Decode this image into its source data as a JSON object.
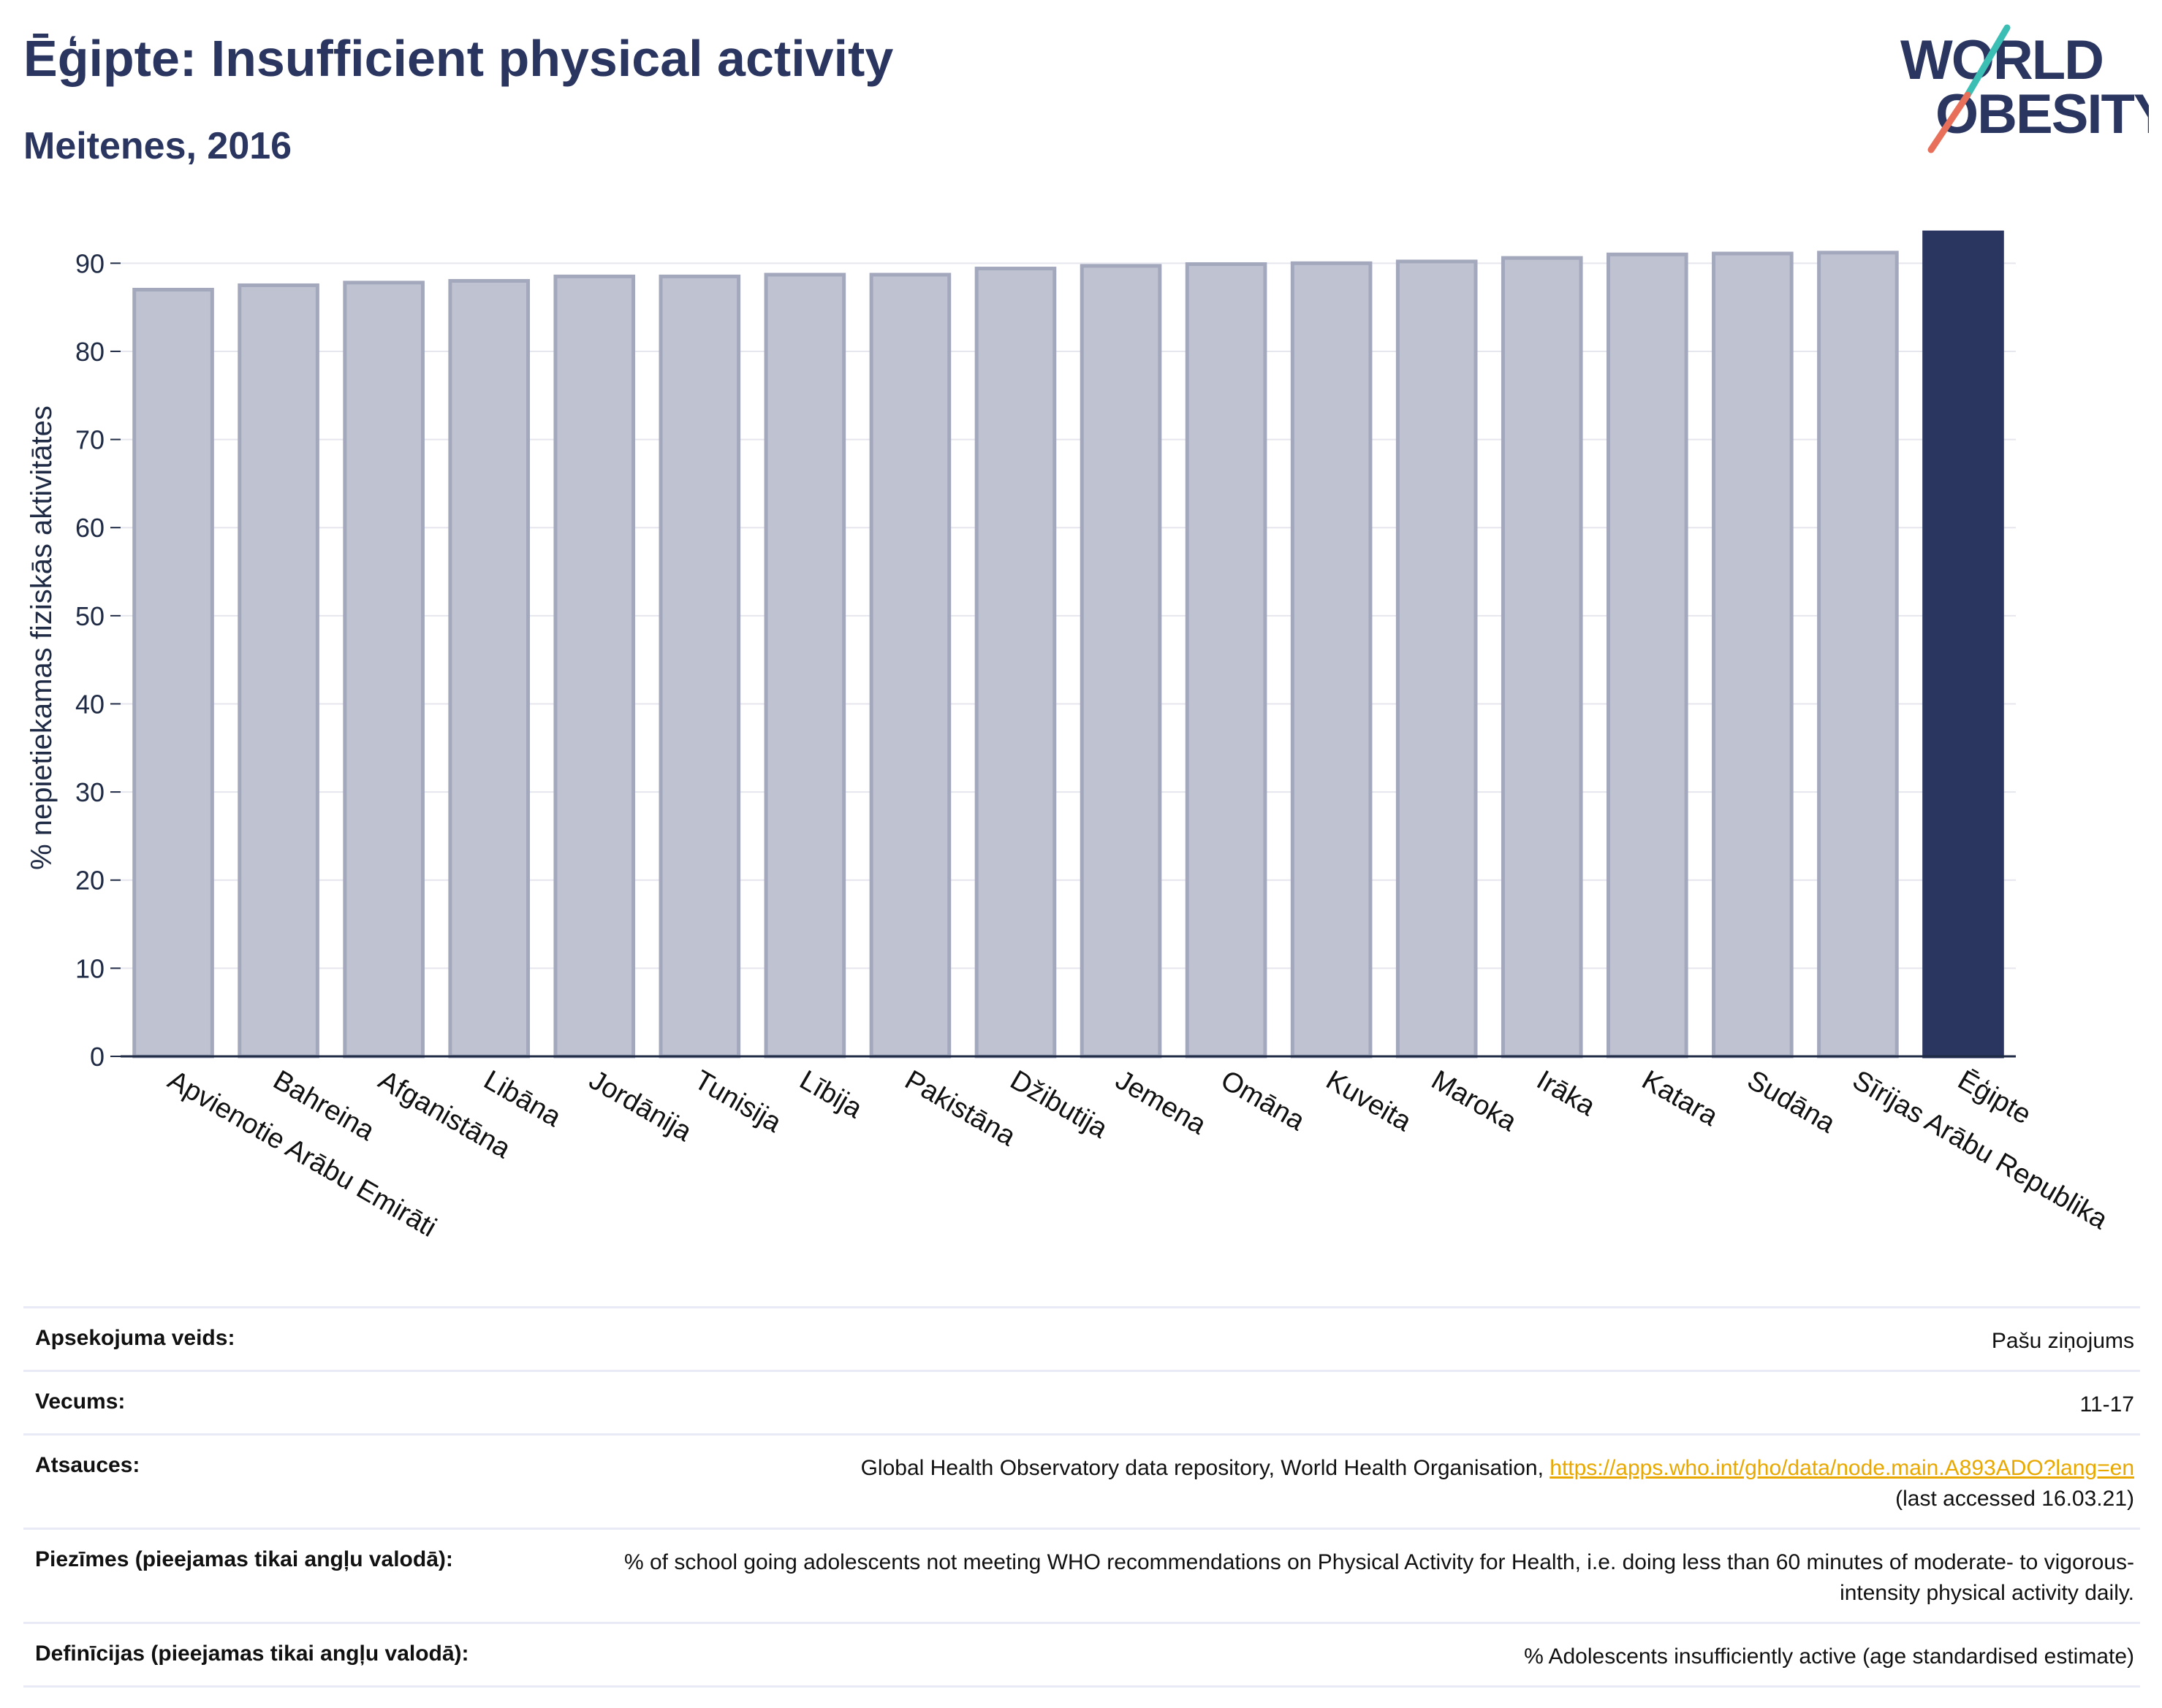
{
  "header": {
    "title": "Ēģipte: Insufficient physical activity",
    "subtitle": "Meitenes, 2016"
  },
  "logo": {
    "line1": "WORLD",
    "line2": "OBESITY",
    "colors": {
      "text": "#2a3560",
      "slash_teal": "#3bbfb4",
      "slash_coral": "#e8705a"
    }
  },
  "chart_data": {
    "type": "bar",
    "ylabel": "% nepietiekamas fiziskās aktivitātes",
    "ylim": [
      0,
      95
    ],
    "yticks": [
      0,
      10,
      20,
      30,
      40,
      50,
      60,
      70,
      80,
      90
    ],
    "grid": true,
    "categories": [
      "Apvienotie Arābu Emirāti",
      "Bahreina",
      "Afganistāna",
      "Libāna",
      "Jordānija",
      "Tunisija",
      "Lībija",
      "Pakistāna",
      "Džibutija",
      "Jemena",
      "Omāna",
      "Kuveita",
      "Maroka",
      "Irāka",
      "Katara",
      "Sudāna",
      "Sīrijas Arābu Republika",
      "Ēģipte"
    ],
    "values": [
      87.0,
      87.5,
      87.8,
      88.0,
      88.5,
      88.5,
      88.7,
      88.7,
      89.4,
      89.7,
      89.9,
      90.0,
      90.2,
      90.6,
      91.0,
      91.1,
      91.2,
      93.5
    ],
    "highlight": "Ēģipte",
    "colors": {
      "bar": "#bfc3d1",
      "bar_edge": "#a3a8bd",
      "highlight": "#2a3560",
      "grid": "#e6e6ee",
      "axis": "#1f2a44"
    }
  },
  "meta": {
    "rows": [
      {
        "label": "Apsekojuma veids:",
        "value": "Pašu ziņojums"
      },
      {
        "label": "Vecums:",
        "value": "11-17"
      },
      {
        "label": "Atsauces:",
        "value_prefix": "Global Health Observatory data repository, World Health Organisation, ",
        "link": "https://apps.who.int/gho/data/node.main.A893ADO?lang=en",
        "value_suffix": "(last accessed 16.03.21)"
      },
      {
        "label": "Piezīmes (pieejamas tikai angļu valodā):",
        "value": "% of school going adolescents not meeting WHO recommendations on Physical Activity for Health, i.e. doing less than 60 minutes of moderate- to vigorous-intensity physical activity daily."
      },
      {
        "label": "Definīcijas (pieejamas tikai angļu valodā):",
        "value": "% Adolescents insufficiently active (age standardised estimate)"
      }
    ]
  }
}
